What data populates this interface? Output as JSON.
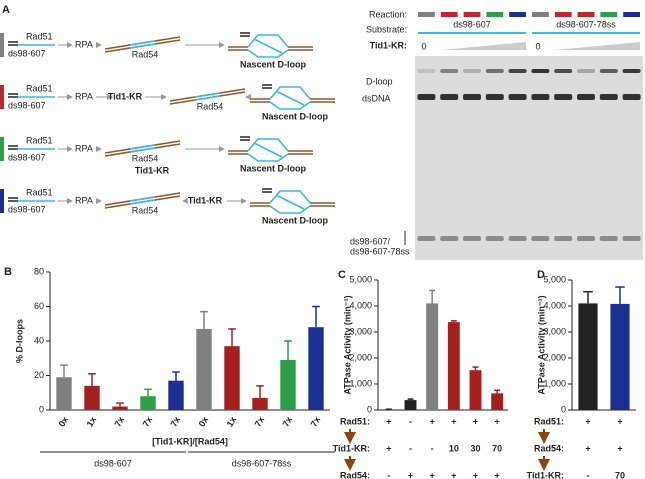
{
  "panels": {
    "a": "A",
    "b": "B",
    "c": "C",
    "d": "D"
  },
  "diagram": {
    "rows": [
      {
        "color": "#808080",
        "rad51": "Rad51",
        "substrate": "ds98-607",
        "rpa": "RPA",
        "rad54": "Rad54",
        "product": "Nascent D-loop"
      },
      {
        "color": "#c0272d",
        "rad51": "Rad51",
        "substrate": "ds98-607",
        "rpa": "RPA",
        "tid1": "Tid1-KR",
        "tid1_color": "#c0272d",
        "rad54": "Rad54",
        "product": "Nascent D-loop"
      },
      {
        "color": "#2e9e47",
        "rad51": "Rad51",
        "substrate": "ds98-607",
        "rpa": "RPA",
        "tid1": "Tid1-KR",
        "tid1_color": "#2e9e47",
        "rad54": "Rad54",
        "product": "Nascent D-loop"
      },
      {
        "color": "#1a2f8f",
        "rad51": "Rad51",
        "substrate": "ds98-607",
        "rpa": "RPA",
        "tid1": "Tid1-KR",
        "tid1_color": "#1a2f8f",
        "rad54": "Rad54",
        "product": "Nascent D-loop"
      }
    ]
  },
  "gel": {
    "reaction_label": "Reaction:",
    "substrate_label": "Substrate:",
    "tid1_label": "Tid1-KR:",
    "lane_colors": [
      "#808080",
      "#c0272d",
      "#c0272d",
      "#2e9e47",
      "#1a2f8f",
      "#808080",
      "#c0272d",
      "#c0272d",
      "#2e9e47",
      "#1a2f8f"
    ],
    "substrates": [
      {
        "name": "ds98-607",
        "color": "#c0272d"
      },
      {
        "name": "ds98-607-78ss",
        "color": "#1a2f8f"
      }
    ],
    "zero_labels": [
      "0",
      "0"
    ],
    "dloop": "D-loop",
    "dsdna": "dsDNA",
    "ss_labels": [
      "ds98-607/",
      "ds98-607-78ss"
    ]
  },
  "chart_data": [
    {
      "type": "bar",
      "ylabel": "% D-loops",
      "xlabel": "[Tid1-KR]/[Rad54]",
      "categories": [
        "0x",
        "1x",
        "7x",
        "7x",
        "7x",
        "0x",
        "1x",
        "7x",
        "7x",
        "7x"
      ],
      "values": [
        19,
        14,
        2,
        8,
        17,
        47,
        37,
        7,
        29,
        48
      ],
      "errors": [
        7,
        7,
        2,
        4,
        5,
        10,
        10,
        7,
        11,
        12
      ],
      "colors": [
        "#808080",
        "#a3201f",
        "#a3201f",
        "#2e9e47",
        "#1a2f8f",
        "#808080",
        "#a3201f",
        "#a3201f",
        "#2e9e47",
        "#1a2f8f"
      ],
      "groups": [
        "ds98-607",
        "ds98-607-78ss"
      ],
      "ylim": [
        0,
        80
      ],
      "yticks": [
        0,
        20,
        40,
        60,
        80
      ]
    },
    {
      "type": "bar",
      "ylabel": "ATPase Activity (min⁻¹)",
      "values": [
        20,
        380,
        4100,
        3380,
        1530,
        640
      ],
      "errors": [
        10,
        40,
        500,
        50,
        120,
        120
      ],
      "colors": [
        "#222222",
        "#222222",
        "#808080",
        "#a3201f",
        "#a3201f",
        "#a3201f"
      ],
      "conditions": [
        {
          "label": "Rad51:",
          "values": [
            "+",
            "-",
            "+",
            "+",
            "+",
            "+"
          ]
        },
        {
          "label": "Tid1-KR:",
          "values": [
            "+",
            "-",
            "-",
            "10",
            "30",
            "70"
          ],
          "color": "#a3201f"
        },
        {
          "label": "Rad54:",
          "values": [
            "-",
            "+",
            "+",
            "+",
            "+",
            "+"
          ]
        }
      ],
      "ylim": [
        0,
        5000
      ],
      "yticks": [
        0,
        {
          "value": 1000,
          "label": "1,000"
        },
        {
          "value": 2000,
          "label": "2,000"
        },
        {
          "value": 3000,
          "label": "3,000"
        },
        {
          "value": 4000,
          "label": "4,000"
        },
        {
          "value": 5000,
          "label": "5,000"
        }
      ]
    },
    {
      "type": "bar",
      "ylabel": "ATPase Activity (min⁻¹)",
      "values": [
        4100,
        4080
      ],
      "errors": [
        450,
        650
      ],
      "colors": [
        "#222222",
        "#1a2f8f"
      ],
      "conditions": [
        {
          "label": "Rad51:",
          "values": [
            "+",
            "+"
          ]
        },
        {
          "label": "Rad54:",
          "values": [
            "+",
            "+"
          ]
        },
        {
          "label": "Tid1-KR:",
          "values": [
            "-",
            "70"
          ],
          "color": "#1a2f8f"
        }
      ],
      "ylim": [
        0,
        5000
      ],
      "yticks": [
        0,
        {
          "value": 1000,
          "label": "1,000"
        },
        {
          "value": 2000,
          "label": "2,000"
        },
        {
          "value": 3000,
          "label": "3,000"
        },
        {
          "value": 4000,
          "label": "4,000"
        },
        {
          "value": 5000,
          "label": "5,000"
        }
      ]
    }
  ]
}
